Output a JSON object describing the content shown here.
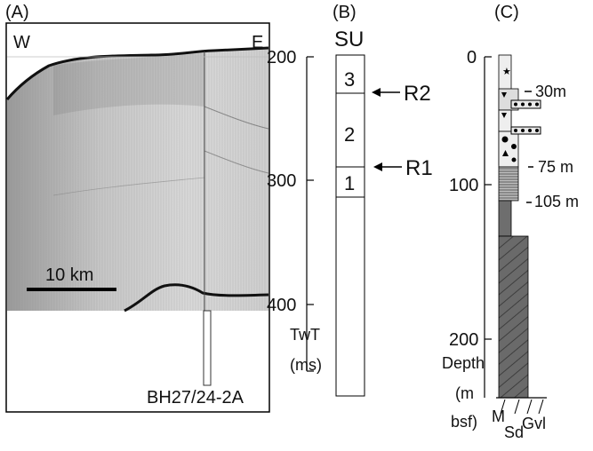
{
  "panel_a": {
    "label": "(A)",
    "left_label": "W",
    "right_label": "E",
    "scale_label": "10 km",
    "borehole_label": "BH27/24-2A"
  },
  "panel_b": {
    "label": "(B)",
    "header": "SU",
    "axis_title": "TwT",
    "axis_unit": "(ms)",
    "ticks": [
      "200",
      "300",
      "400"
    ],
    "units": [
      "3",
      "2",
      "1"
    ],
    "reflectors": [
      "R2",
      "R1"
    ]
  },
  "panel_c": {
    "label": "(C)",
    "ticks": [
      "0",
      "100",
      "200"
    ],
    "depth_labels": [
      "30m",
      "75 m",
      "105 m"
    ],
    "axis_title": "Depth",
    "axis_unit_1": "(m",
    "axis_unit_2": "bsf)",
    "grain_labels": [
      "M",
      "Sd",
      "Gvl"
    ]
  }
}
